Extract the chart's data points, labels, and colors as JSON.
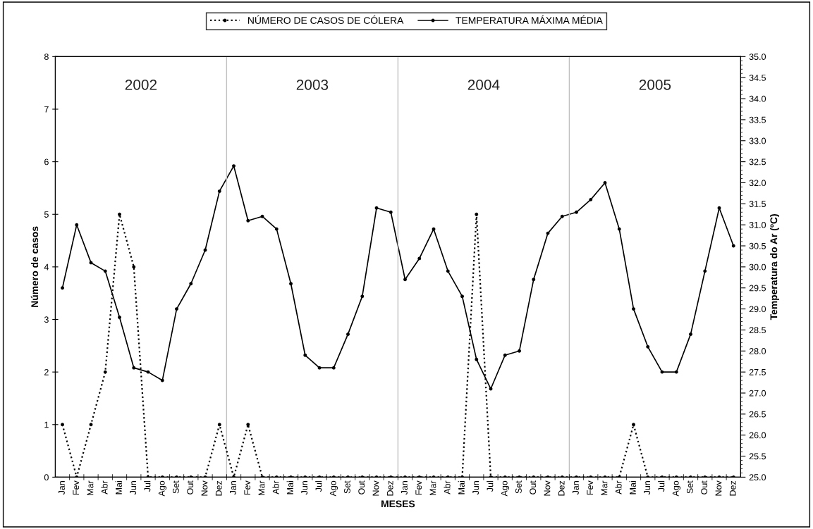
{
  "chart_data": {
    "type": "line",
    "xlabel": "MESES",
    "ylabel": "Número de casos",
    "y2label": "Temperatura do Ar (ºC)",
    "categories": [
      "Jan",
      "Fev",
      "Mar",
      "Abr",
      "Mai",
      "Jun",
      "Jul",
      "Ago",
      "Set",
      "Out",
      "Nov",
      "Dez",
      "Jan",
      "Fev",
      "Mar",
      "Abr",
      "Mai",
      "Jun",
      "Jul",
      "Ago",
      "Set",
      "Out",
      "Nov",
      "Dez",
      "Jan",
      "Fev",
      "Mar",
      "Abr",
      "Mai",
      "Jun",
      "Jul",
      "Ago",
      "Set",
      "Out",
      "Nov",
      "Dez",
      "Jan",
      "Fev",
      "Mar",
      "Abr",
      "Mai",
      "Jun",
      "Jul",
      "Ago",
      "Set",
      "Out",
      "Nov",
      "Dez"
    ],
    "series": [
      {
        "name": "NÚMERO DE CASOS DE CÓLERA",
        "color": "#000000",
        "line_style": "dotted",
        "marker": "circle",
        "values": [
          1,
          0,
          1,
          2,
          5,
          4,
          0,
          0,
          0,
          0,
          0,
          1,
          0,
          1,
          0,
          0,
          0,
          0,
          0,
          0,
          0,
          0,
          0,
          0,
          0,
          0,
          0,
          0,
          0,
          5,
          0,
          0,
          0,
          0,
          0,
          0,
          0,
          0,
          0,
          0,
          1,
          0,
          0,
          0,
          0,
          0,
          0,
          0
        ]
      },
      {
        "name": "TEMPERATURA MÁXIMA MÉDIA",
        "color": "#000000",
        "line_style": "solid",
        "marker": "circle",
        "axis": "y2",
        "values": [
          29.5,
          31.0,
          30.1,
          29.9,
          28.8,
          27.6,
          27.5,
          27.3,
          29.0,
          29.6,
          30.4,
          31.8,
          32.4,
          31.1,
          31.2,
          30.9,
          29.6,
          27.9,
          27.6,
          27.6,
          28.4,
          29.3,
          31.4,
          31.3,
          29.7,
          30.2,
          30.9,
          29.9,
          29.3,
          27.8,
          27.1,
          27.9,
          28.0,
          29.7,
          30.8,
          31.2,
          31.3,
          31.6,
          32.0,
          30.9,
          29.0,
          28.1,
          27.5,
          27.5,
          28.4,
          29.9,
          31.4,
          30.5
        ]
      }
    ],
    "ylim": [
      0,
      8
    ],
    "yticks": [
      0,
      1,
      2,
      3,
      4,
      5,
      6,
      7,
      8
    ],
    "y2lim": [
      25,
      35
    ],
    "y2ticks": [
      {
        "value": 25,
        "label": "25.0"
      },
      {
        "value": 25.5,
        "label": "25.5"
      },
      {
        "value": 26,
        "label": "26.0"
      },
      {
        "value": 26.5,
        "label": "26.5"
      },
      {
        "value": 27,
        "label": "27.0"
      },
      {
        "value": 27.5,
        "label": "27.5"
      },
      {
        "value": 28,
        "label": "28.0"
      },
      {
        "value": 28.5,
        "label": "28.5"
      },
      {
        "value": 29,
        "label": "29.0"
      },
      {
        "value": 29.5,
        "label": "29.5"
      },
      {
        "value": 30,
        "label": "30.0"
      },
      {
        "value": 30.5,
        "label": "30.5"
      },
      {
        "value": 31,
        "label": "31.0"
      },
      {
        "value": 31.5,
        "label": "31.5"
      },
      {
        "value": 32,
        "label": "32.0"
      },
      {
        "value": 32.5,
        "label": "32.5"
      },
      {
        "value": 33,
        "label": "33.0"
      },
      {
        "value": 33.5,
        "label": "33.5"
      },
      {
        "value": 34,
        "label": "34.0"
      },
      {
        "value": 34.5,
        "label": "34.5"
      },
      {
        "value": 35,
        "label": "35.0"
      }
    ],
    "annotations": [
      "2002",
      "2003",
      "2004",
      "2005"
    ],
    "legend": "top",
    "grid": false
  }
}
